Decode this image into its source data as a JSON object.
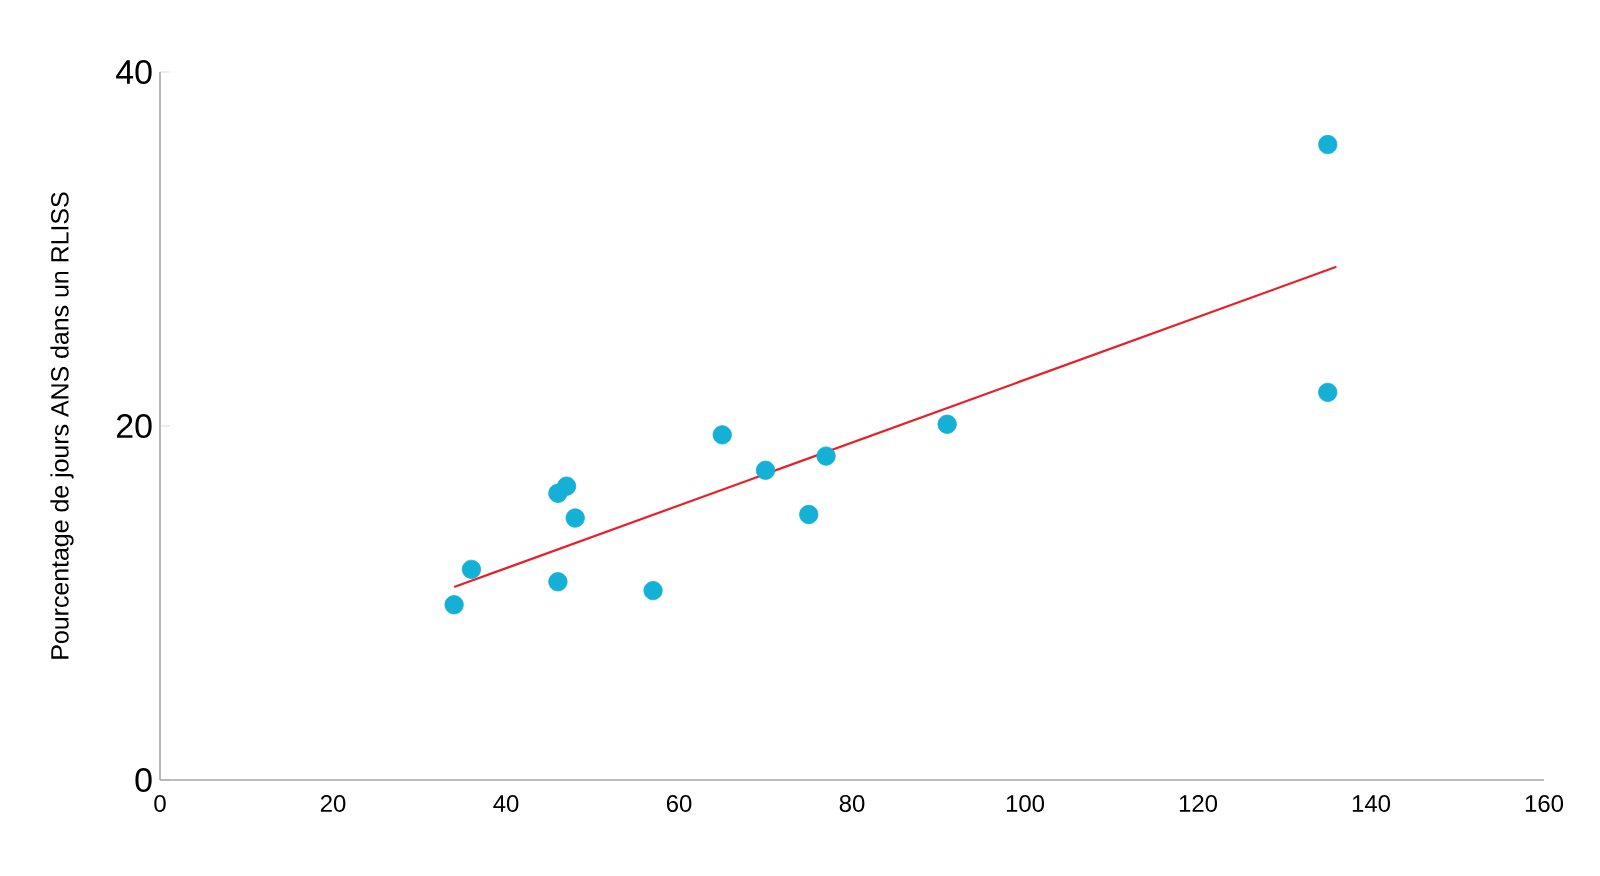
{
  "chart_data": {
    "type": "scatter",
    "ylabel": "Pourcentage de jours ANS dans un RLISS",
    "xlim": [
      0,
      160
    ],
    "xticks": [
      0,
      20,
      40,
      60,
      80,
      100,
      120,
      140,
      160
    ],
    "ylim": [
      0,
      40
    ],
    "yticks": [
      0,
      20,
      40
    ],
    "grid": false,
    "series": [
      {
        "marker": "circle",
        "color": "#14b0d6",
        "x": [
          34,
          36,
          46,
          46,
          47,
          48,
          57,
          65,
          70,
          75,
          77,
          91,
          135,
          135
        ],
        "values": [
          9.9,
          11.9,
          11.2,
          16.2,
          16.6,
          14.8,
          10.7,
          19.5,
          17.5,
          15.0,
          18.3,
          20.1,
          35.9,
          21.9
        ]
      },
      {
        "type": "line",
        "marker": "none",
        "color": "#e8202a",
        "x": [
          34,
          136
        ],
        "values": [
          10.9,
          29.0
        ]
      }
    ]
  }
}
